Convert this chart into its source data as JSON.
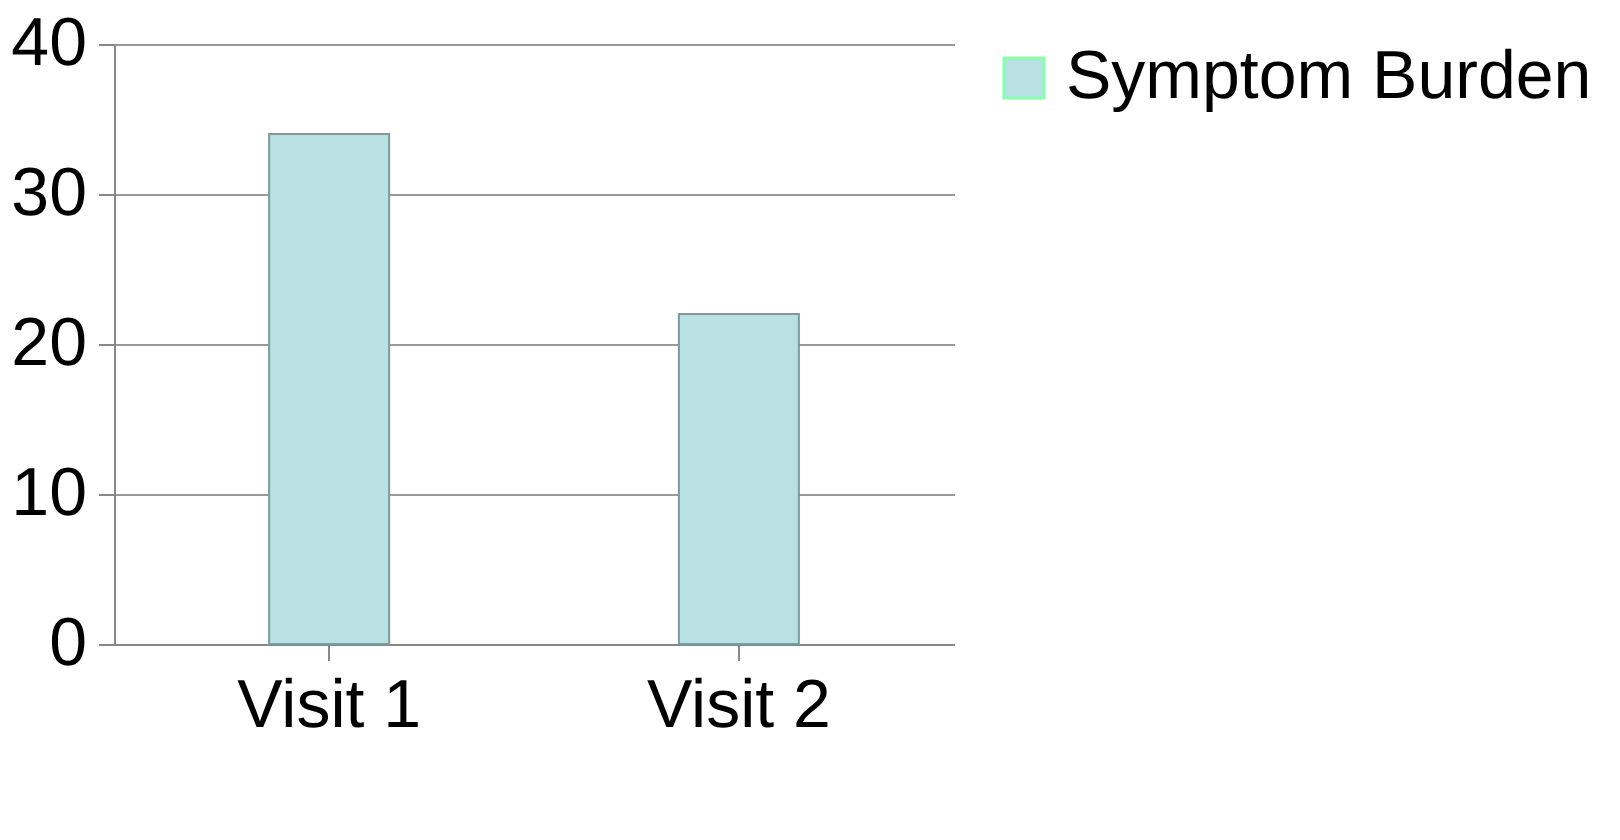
{
  "chart_data": {
    "type": "bar",
    "categories": [
      "Visit 1",
      "Visit 2"
    ],
    "series": [
      {
        "name": "Symptom Burden",
        "color": "#b9e0e2",
        "values": [
          34,
          22
        ]
      }
    ],
    "ylim": [
      0,
      40
    ],
    "yticks": [
      0,
      10,
      20,
      30,
      40
    ],
    "grid": "y",
    "legend": "right"
  }
}
